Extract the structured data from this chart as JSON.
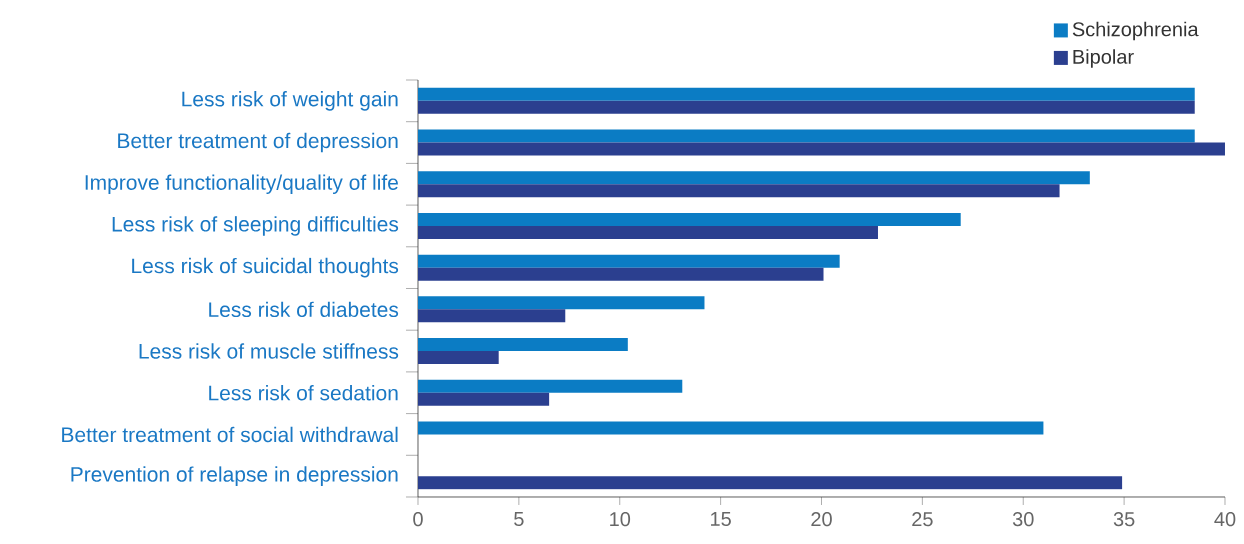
{
  "chart_data": {
    "type": "bar",
    "orientation": "horizontal",
    "categories": [
      "Less risk of weight gain",
      "Better treatment of depression",
      "Improve functionality/quality of life",
      "Less risk of sleeping difficulties",
      "Less risk of suicidal thoughts",
      "Less risk of diabetes",
      "Less risk of muscle stiffness",
      "Less risk of sedation",
      "Better treatment of social withdrawal",
      "Prevention of relapse in depression"
    ],
    "series": [
      {
        "name": "Schizophrenia",
        "color": "#0b7cc4",
        "values": [
          38.5,
          38.5,
          33.3,
          26.9,
          20.9,
          14.2,
          10.4,
          13.1,
          31.0,
          null
        ]
      },
      {
        "name": "Bipolar",
        "color": "#2b3f8f",
        "values": [
          38.5,
          40.0,
          31.8,
          22.8,
          20.1,
          7.3,
          4.0,
          6.5,
          null,
          34.9
        ]
      }
    ],
    "xlim": [
      0,
      40
    ],
    "xticks": [
      0,
      5,
      10,
      15,
      20,
      25,
      30,
      35,
      40
    ],
    "grid": false,
    "legend": "top right"
  }
}
